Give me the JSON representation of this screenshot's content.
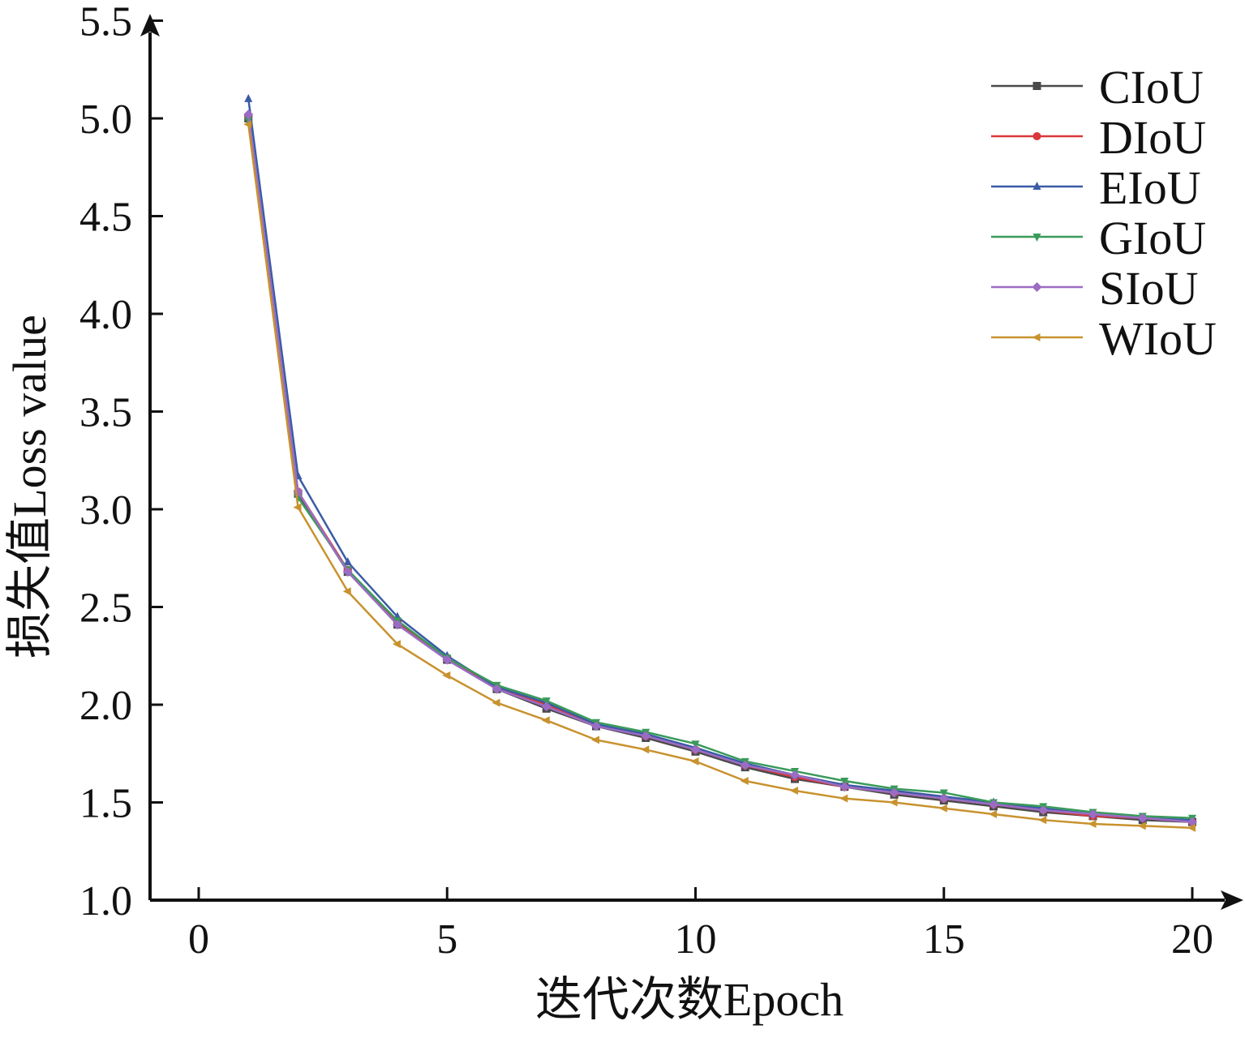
{
  "chart_data": {
    "type": "line",
    "title": "",
    "xlabel": "迭代次数Epoch",
    "ylabel": "损失值Loss value",
    "xlim": [
      -2,
      20.6
    ],
    "ylim": [
      1.0,
      5.5
    ],
    "xticks": [
      0,
      5,
      10,
      15,
      20
    ],
    "xtick_labels": [
      "0",
      "5",
      "10",
      "15",
      "20"
    ],
    "yticks": [
      1.0,
      1.5,
      2.0,
      2.5,
      3.0,
      3.5,
      4.0,
      4.5,
      5.0,
      5.5
    ],
    "ytick_labels": [
      "1.0",
      "1.5",
      "2.0",
      "2.5",
      "3.0",
      "3.5",
      "4.0",
      "4.5",
      "5.0",
      "5.5"
    ],
    "grid": false,
    "legend_position": "top-right",
    "x": [
      1,
      2,
      3,
      4,
      5,
      6,
      7,
      8,
      9,
      10,
      11,
      12,
      13,
      14,
      15,
      16,
      17,
      18,
      19,
      20
    ],
    "series": [
      {
        "name": "CIoU",
        "color": "#4a4a4a",
        "marker": "square",
        "values": [
          5.0,
          3.08,
          2.68,
          2.41,
          2.23,
          2.08,
          1.98,
          1.89,
          1.83,
          1.76,
          1.68,
          1.62,
          1.58,
          1.54,
          1.51,
          1.48,
          1.45,
          1.43,
          1.41,
          1.4
        ]
      },
      {
        "name": "DIoU",
        "color": "#d9383a",
        "marker": "circle",
        "values": [
          5.01,
          3.09,
          2.69,
          2.42,
          2.24,
          2.09,
          2.0,
          1.9,
          1.84,
          1.77,
          1.69,
          1.63,
          1.58,
          1.55,
          1.52,
          1.49,
          1.46,
          1.43,
          1.42,
          1.4
        ]
      },
      {
        "name": "EIoU",
        "color": "#3a5ba6",
        "marker": "triangle-up",
        "values": [
          5.1,
          3.17,
          2.73,
          2.45,
          2.25,
          2.09,
          2.01,
          1.9,
          1.85,
          1.78,
          1.7,
          1.64,
          1.59,
          1.56,
          1.53,
          1.5,
          1.47,
          1.44,
          1.42,
          1.41
        ]
      },
      {
        "name": "GIoU",
        "color": "#3a9a5a",
        "marker": "triangle-down",
        "values": [
          4.99,
          3.06,
          2.69,
          2.43,
          2.24,
          2.1,
          2.02,
          1.91,
          1.86,
          1.8,
          1.71,
          1.66,
          1.61,
          1.57,
          1.55,
          1.5,
          1.48,
          1.45,
          1.43,
          1.42
        ]
      },
      {
        "name": "SIoU",
        "color": "#9b6cc4",
        "marker": "diamond",
        "values": [
          5.02,
          3.09,
          2.68,
          2.41,
          2.23,
          2.08,
          1.99,
          1.89,
          1.84,
          1.77,
          1.69,
          1.64,
          1.58,
          1.55,
          1.52,
          1.49,
          1.46,
          1.44,
          1.42,
          1.4
        ]
      },
      {
        "name": "WIoU",
        "color": "#c8922e",
        "marker": "triangle-left",
        "values": [
          4.97,
          3.01,
          2.58,
          2.31,
          2.15,
          2.01,
          1.92,
          1.82,
          1.77,
          1.71,
          1.61,
          1.56,
          1.52,
          1.5,
          1.47,
          1.44,
          1.41,
          1.39,
          1.38,
          1.37
        ]
      }
    ]
  }
}
